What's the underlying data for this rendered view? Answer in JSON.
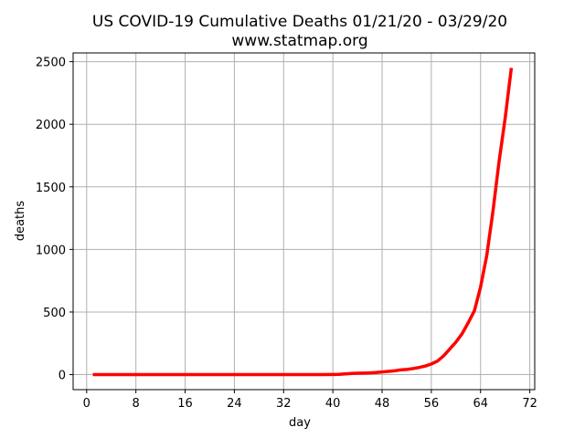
{
  "chart_data": {
    "type": "line",
    "title": "US COVID-19 Cumulative Deaths 01/21/20 - 03/29/20",
    "subtitle": "www.statmap.org",
    "xlabel": "day",
    "ylabel": "deaths",
    "xlim": [
      -2.2,
      72.8
    ],
    "ylim": [
      -120,
      2570
    ],
    "xticks": [
      0,
      8,
      16,
      24,
      32,
      40,
      48,
      56,
      64,
      72
    ],
    "yticks": [
      0,
      500,
      1000,
      1500,
      2000,
      2500
    ],
    "grid": true,
    "series": [
      {
        "color": "#ff0000",
        "x": [
          1,
          10,
          20,
          30,
          38,
          40,
          41,
          42,
          43,
          44,
          45,
          46,
          47,
          48,
          49,
          50,
          51,
          52,
          53,
          54,
          55,
          56,
          57,
          58,
          59,
          60,
          61,
          62,
          63,
          64,
          65,
          66,
          67,
          68,
          69
        ],
        "y": [
          0,
          0,
          0,
          0,
          0,
          1,
          2,
          6,
          9,
          11,
          12,
          14,
          17,
          21,
          26,
          30,
          38,
          41,
          48,
          57,
          68,
          85,
          108,
          150,
          205,
          260,
          327,
          415,
          510,
          700,
          950,
          1300,
          1700,
          2050,
          2450
        ]
      }
    ]
  }
}
